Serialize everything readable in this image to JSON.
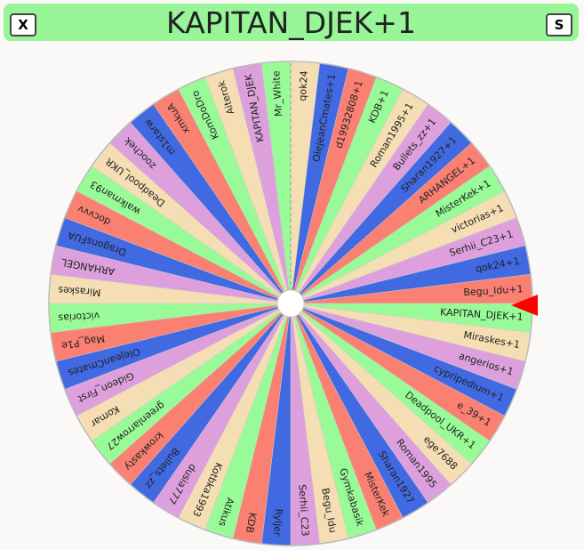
{
  "header": {
    "title": "KAPITAN_DJEK+1",
    "close_button": "X",
    "spin_button": "S"
  },
  "wheel": {
    "pointer_color": "#ff0000",
    "segments": [
      {
        "label": "qok24",
        "color": "#f5deb3"
      },
      {
        "label": "OlejeanCmates+1",
        "color": "#4169e1"
      },
      {
        "label": "d19932808+1",
        "color": "#fa8072"
      },
      {
        "label": "KDB+1",
        "color": "#98fb98"
      },
      {
        "label": "Roman1995+1",
        "color": "#f5deb3"
      },
      {
        "label": "Bullets_zz+1",
        "color": "#dda0dd"
      },
      {
        "label": "Sharan1927+1",
        "color": "#4169e1"
      },
      {
        "label": "ARHANGEL+1",
        "color": "#fa8072"
      },
      {
        "label": "MisterKek+1",
        "color": "#98fb98"
      },
      {
        "label": "victorias+1",
        "color": "#f5deb3"
      },
      {
        "label": "Serhii_C23+1",
        "color": "#dda0dd"
      },
      {
        "label": "qok24+1",
        "color": "#4169e1"
      },
      {
        "label": "Begu_Idu+1",
        "color": "#fa8072"
      },
      {
        "label": "KAPITAN_DJEK+1",
        "color": "#98fb98"
      },
      {
        "label": "Miraskes+1",
        "color": "#f5deb3"
      },
      {
        "label": "angerios+1",
        "color": "#dda0dd"
      },
      {
        "label": "cypripedium+1",
        "color": "#4169e1"
      },
      {
        "label": "e_39+1",
        "color": "#fa8072"
      },
      {
        "label": "Deadpool_UKR+1",
        "color": "#98fb98"
      },
      {
        "label": "ege7688",
        "color": "#f5deb3"
      },
      {
        "label": "Roman1995",
        "color": "#dda0dd"
      },
      {
        "label": "Sharan1927",
        "color": "#4169e1"
      },
      {
        "label": "MisterKek",
        "color": "#fa8072"
      },
      {
        "label": "Gymkabasik",
        "color": "#98fb98"
      },
      {
        "label": "Begu_Idu",
        "color": "#f5deb3"
      },
      {
        "label": "Serhii_C23",
        "color": "#dda0dd"
      },
      {
        "label": "Ryljer",
        "color": "#4169e1"
      },
      {
        "label": "KDB",
        "color": "#fa8072"
      },
      {
        "label": "Atikus",
        "color": "#98fb98"
      },
      {
        "label": "Kotbka1993",
        "color": "#f5deb3"
      },
      {
        "label": "dusia777",
        "color": "#dda0dd"
      },
      {
        "label": "Bullets_zz",
        "color": "#4169e1"
      },
      {
        "label": "krowkasty",
        "color": "#fa8072"
      },
      {
        "label": "greenlarrow27",
        "color": "#98fb98"
      },
      {
        "label": "Komar",
        "color": "#f5deb3"
      },
      {
        "label": "Gideon_First",
        "color": "#dda0dd"
      },
      {
        "label": "OlejeanCmates",
        "color": "#4169e1"
      },
      {
        "label": "Mag_P1e",
        "color": "#fa8072"
      },
      {
        "label": "victorias",
        "color": "#98fb98"
      },
      {
        "label": "Miraskes",
        "color": "#f5deb3"
      },
      {
        "label": "ARHANGEL",
        "color": "#dda0dd"
      },
      {
        "label": "DragonsFUA",
        "color": "#4169e1"
      },
      {
        "label": "docvvv",
        "color": "#fa8072"
      },
      {
        "label": "walkman93",
        "color": "#98fb98"
      },
      {
        "label": "Deadpool_UKR",
        "color": "#f5deb3"
      },
      {
        "label": "zoochek",
        "color": "#dda0dd"
      },
      {
        "label": "m1starw",
        "color": "#4169e1"
      },
      {
        "label": "xmkuA",
        "color": "#fa8072"
      },
      {
        "label": "KomDoDro",
        "color": "#98fb98"
      },
      {
        "label": "Aiterok",
        "color": "#f5deb3"
      },
      {
        "label": "KAPITAN_DJEK",
        "color": "#dda0dd"
      },
      {
        "label": "Mr_White",
        "color": "#98fb98"
      }
    ]
  }
}
